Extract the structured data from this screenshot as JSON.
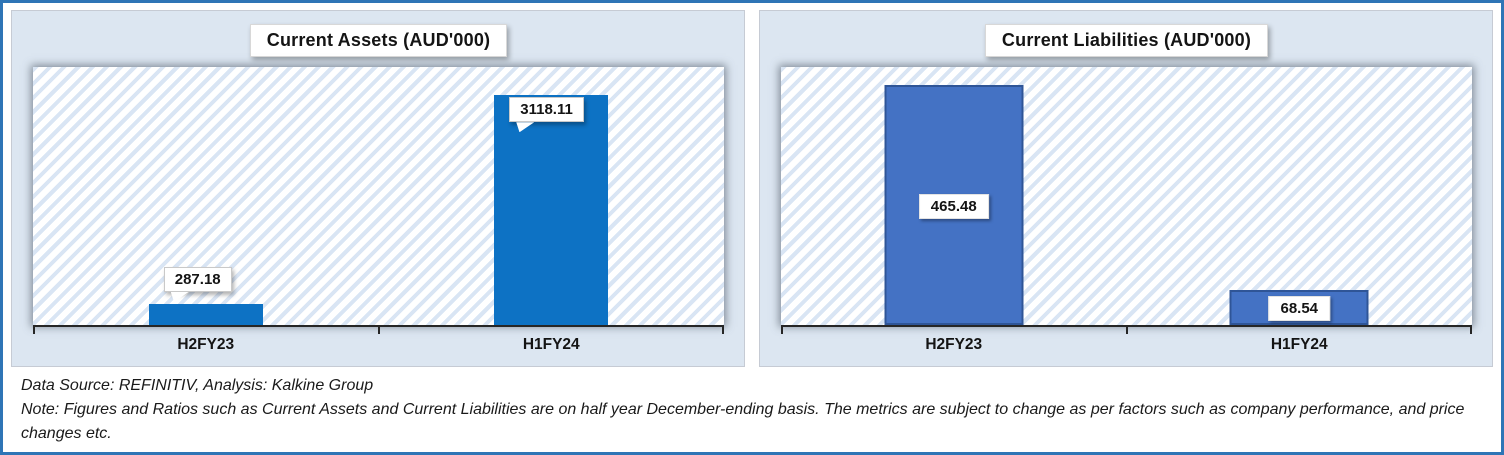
{
  "chart_data": [
    {
      "type": "bar",
      "title": "Current Assets (AUD'000)",
      "categories": [
        "H2FY23",
        "H1FY24"
      ],
      "values": [
        287.18,
        3118.11
      ],
      "data_labels": [
        "287.18",
        "3118.11"
      ],
      "label_style": "callout",
      "ylim": [
        0,
        3500
      ],
      "xlabel": "",
      "ylabel": "",
      "grid": false,
      "legend": "none",
      "bar_color": "#0d72c4",
      "bar_border_color": "#0d72c4",
      "plot_background": "white with light-blue diagonal hatch"
    },
    {
      "type": "bar",
      "title": "Current Liabilities (AUD'000)",
      "categories": [
        "H2FY23",
        "H1FY24"
      ],
      "values": [
        465.48,
        68.54
      ],
      "data_labels": [
        "465.48",
        "68.54"
      ],
      "label_style": "inside-box",
      "ylim": [
        0,
        500
      ],
      "xlabel": "",
      "ylabel": "",
      "grid": false,
      "legend": "none",
      "bar_color": "#4472c4",
      "bar_border_color": "#2f5597",
      "plot_background": "white with light-blue diagonal hatch"
    }
  ],
  "footer": {
    "source": "Data Source: REFINITIV, Analysis: Kalkine Group",
    "note": "Note: Figures and Ratios such as Current Assets and Current Liabilities are on half year December-ending basis. The metrics are subject to change as per factors such as company performance, and price changes etc."
  },
  "colors": {
    "frame_border": "#2e75b6",
    "panel_background": "#dce6f1",
    "hatch_stripe": "#d9e5f4",
    "axis": "#262626",
    "assets_bar": "#0d72c4",
    "liabilities_bar": "#4472c4",
    "liabilities_bar_border": "#2f5597"
  }
}
